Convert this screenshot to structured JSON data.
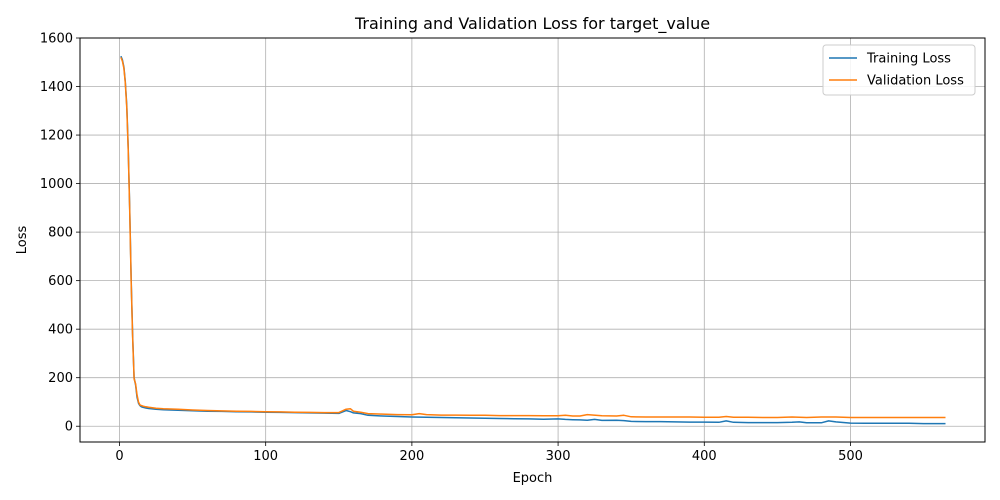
{
  "chart_data": {
    "type": "line",
    "title": "Training and Validation Loss for target_value",
    "xlabel": "Epoch",
    "ylabel": "Loss",
    "xlim": [
      -27,
      592
    ],
    "ylim": [
      -65,
      1600
    ],
    "xticks": [
      0,
      100,
      200,
      300,
      400,
      500
    ],
    "yticks": [
      0,
      200,
      400,
      600,
      800,
      1000,
      1200,
      1400,
      1600
    ],
    "grid": true,
    "legend_position": "top-right",
    "series": [
      {
        "name": "Training Loss",
        "color": "#1f77b4",
        "x": [
          1,
          2,
          3,
          4,
          5,
          6,
          7,
          8,
          9,
          10,
          11,
          12,
          13,
          14,
          15,
          16,
          18,
          20,
          25,
          30,
          40,
          50,
          60,
          70,
          80,
          90,
          100,
          110,
          120,
          130,
          140,
          150,
          155,
          158,
          160,
          165,
          170,
          180,
          190,
          200,
          210,
          220,
          230,
          240,
          250,
          260,
          270,
          280,
          290,
          300,
          305,
          310,
          315,
          320,
          325,
          330,
          340,
          345,
          350,
          360,
          370,
          380,
          390,
          400,
          410,
          415,
          420,
          430,
          440,
          450,
          460,
          465,
          470,
          480,
          485,
          490,
          500,
          510,
          520,
          530,
          540,
          550,
          560,
          565
        ],
        "values": [
          1525,
          1510,
          1480,
          1420,
          1320,
          1150,
          900,
          600,
          380,
          200,
          170,
          120,
          95,
          85,
          80,
          78,
          75,
          73,
          70,
          68,
          66,
          64,
          62,
          61,
          60,
          59,
          58,
          57,
          56,
          55,
          54,
          53,
          65,
          60,
          55,
          52,
          45,
          42,
          40,
          38,
          37,
          36,
          35,
          34,
          33,
          32,
          31,
          30,
          29,
          30,
          28,
          27,
          26,
          25,
          28,
          24,
          25,
          23,
          20,
          19,
          19,
          18,
          17,
          17,
          16,
          22,
          16,
          15,
          15,
          15,
          16,
          18,
          14,
          14,
          22,
          18,
          13,
          12,
          12,
          12,
          12,
          11,
          11,
          11
        ]
      },
      {
        "name": "Validation Loss",
        "color": "#ff7f0e",
        "x": [
          1,
          2,
          3,
          4,
          5,
          6,
          7,
          8,
          9,
          10,
          11,
          12,
          13,
          14,
          15,
          16,
          18,
          20,
          25,
          30,
          40,
          50,
          60,
          70,
          80,
          90,
          100,
          110,
          120,
          130,
          140,
          150,
          155,
          158,
          160,
          165,
          170,
          180,
          190,
          200,
          205,
          210,
          220,
          230,
          240,
          250,
          260,
          270,
          280,
          290,
          300,
          305,
          310,
          315,
          320,
          330,
          340,
          345,
          350,
          360,
          370,
          380,
          390,
          400,
          410,
          415,
          420,
          430,
          440,
          450,
          460,
          470,
          480,
          490,
          500,
          510,
          520,
          530,
          540,
          550,
          560,
          565
        ],
        "values": [
          1520,
          1505,
          1475,
          1415,
          1310,
          1140,
          890,
          590,
          370,
          195,
          175,
          130,
          100,
          88,
          85,
          83,
          80,
          78,
          74,
          72,
          70,
          67,
          65,
          63,
          62,
          61,
          60,
          59,
          58,
          57,
          56,
          56,
          70,
          72,
          62,
          58,
          52,
          50,
          48,
          47,
          52,
          48,
          46,
          46,
          45,
          45,
          44,
          44,
          44,
          43,
          43,
          45,
          42,
          42,
          48,
          43,
          42,
          45,
          39,
          38,
          38,
          38,
          38,
          37,
          37,
          40,
          37,
          37,
          36,
          36,
          38,
          36,
          38,
          38,
          36,
          36,
          36,
          36,
          36,
          36,
          36,
          36
        ]
      }
    ]
  }
}
